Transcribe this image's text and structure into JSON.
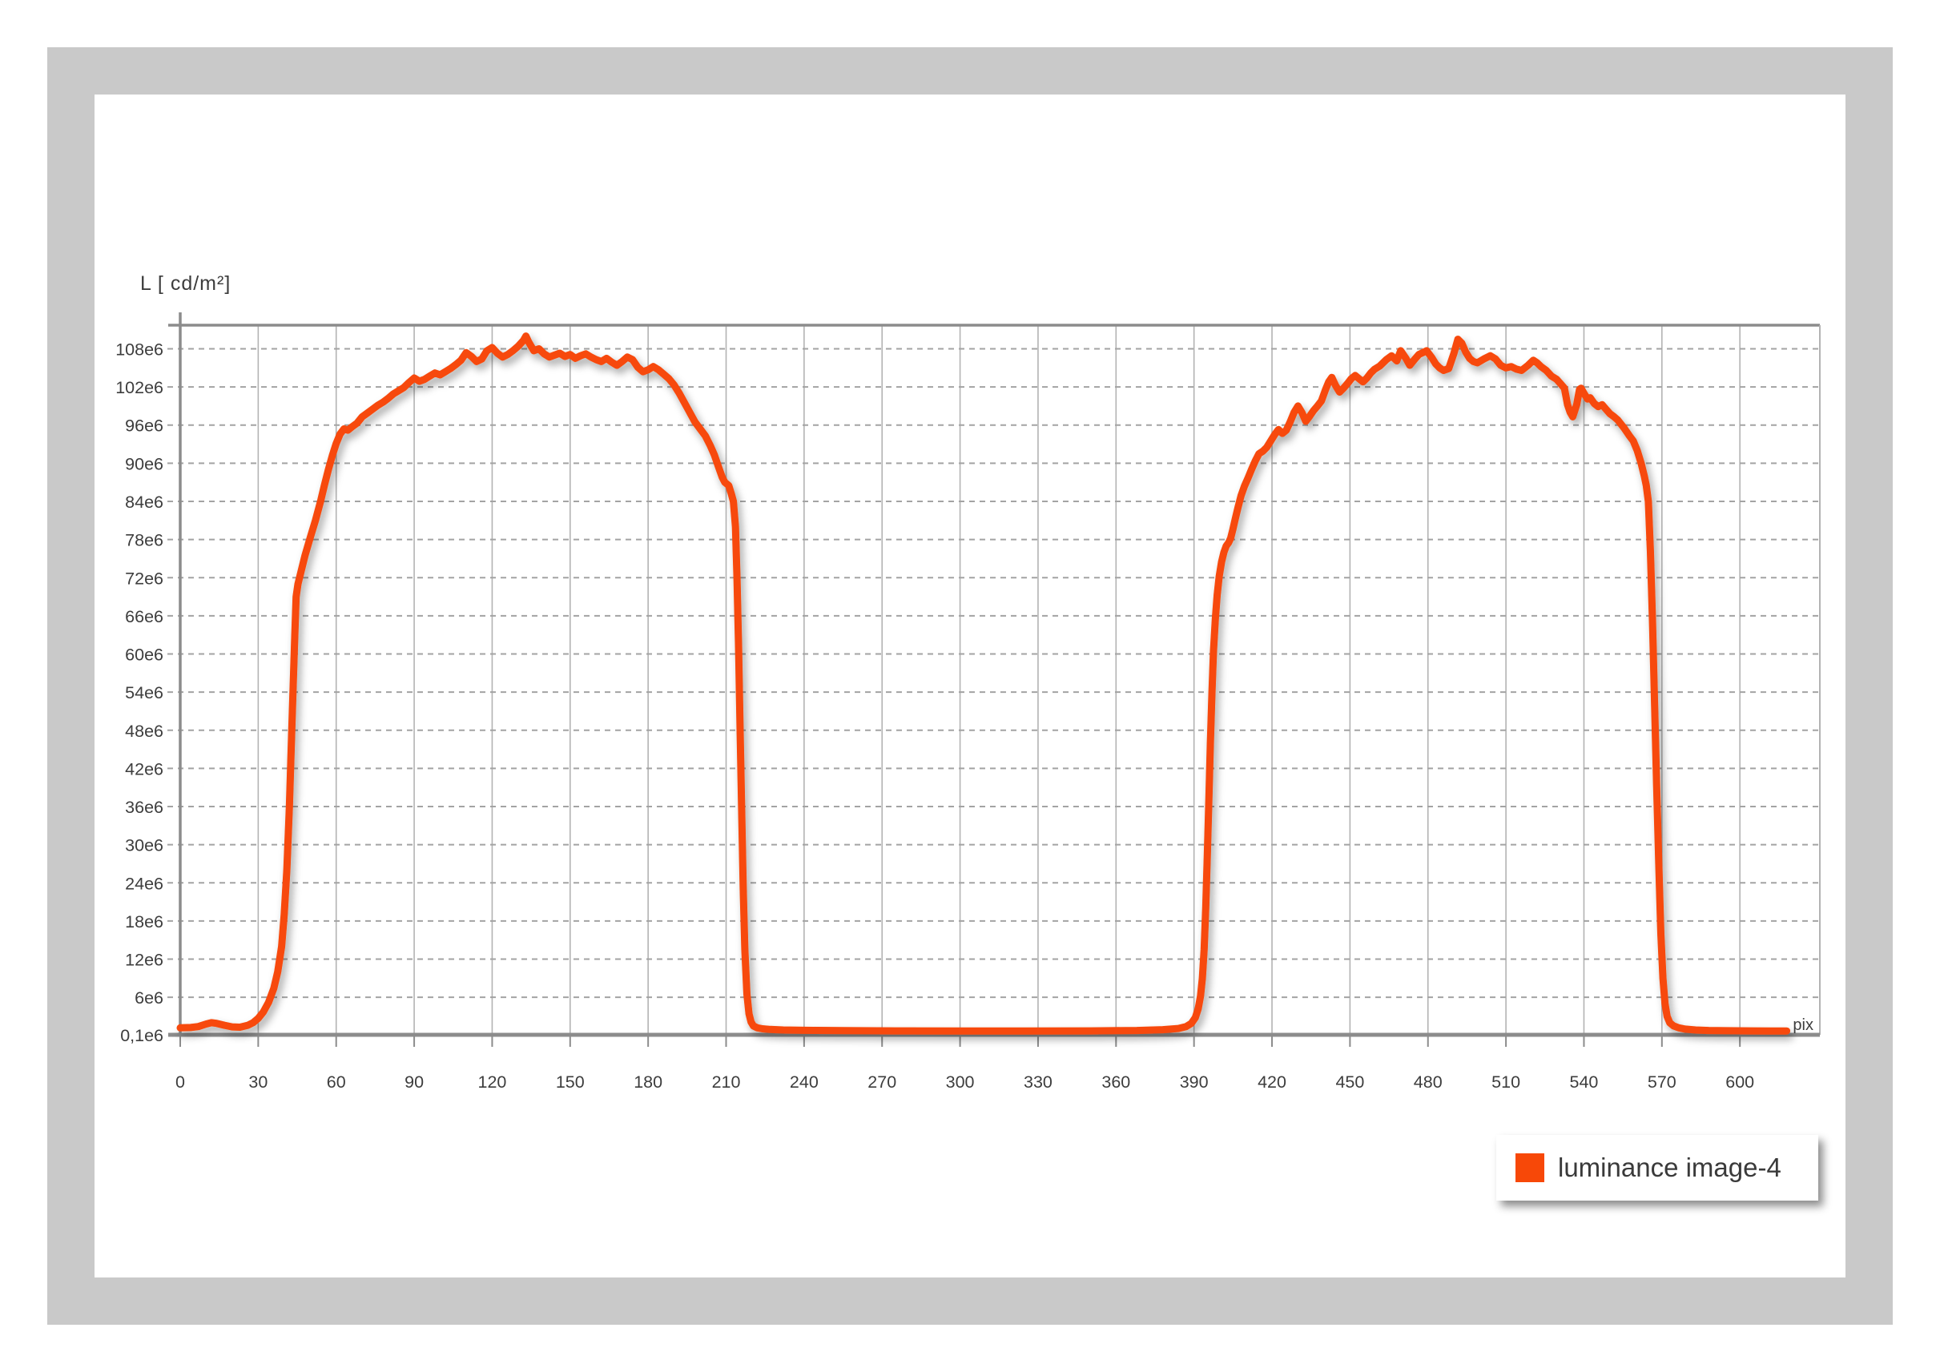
{
  "colors": {
    "curve": "#f74808",
    "frame_gray": "#c9c9c9",
    "panel_bg": "#ffffff",
    "axis": "#8c8c8c",
    "grid_vertical": "#b3b3b3",
    "grid_dashed": "#a3a3a3",
    "text": "#3d3d3d"
  },
  "axis_title": "L [ cd/m²]",
  "x_unit_label": "pix",
  "legend": {
    "label": "luminance image-4"
  },
  "chart_data": {
    "type": "line",
    "title": "",
    "xlabel": "pix",
    "ylabel": "L [ cd/m²]",
    "x_ticks": [
      0,
      30,
      60,
      90,
      120,
      150,
      180,
      210,
      240,
      270,
      300,
      330,
      360,
      390,
      420,
      450,
      480,
      510,
      540,
      570,
      600
    ],
    "y_ticks": [
      {
        "label": "108e6",
        "value": 108
      },
      {
        "label": "102e6",
        "value": 102
      },
      {
        "label": "96e6",
        "value": 96
      },
      {
        "label": "90e6",
        "value": 90
      },
      {
        "label": "84e6",
        "value": 84
      },
      {
        "label": "78e6",
        "value": 78
      },
      {
        "label": "72e6",
        "value": 72
      },
      {
        "label": "66e6",
        "value": 66
      },
      {
        "label": "60e6",
        "value": 60
      },
      {
        "label": "54e6",
        "value": 54
      },
      {
        "label": "48e6",
        "value": 48
      },
      {
        "label": "42e6",
        "value": 42
      },
      {
        "label": "36e6",
        "value": 36
      },
      {
        "label": "30e6",
        "value": 30
      },
      {
        "label": "24e6",
        "value": 24
      },
      {
        "label": "18e6",
        "value": 18
      },
      {
        "label": "12e6",
        "value": 12
      },
      {
        "label": "6e6",
        "value": 6
      },
      {
        "label": "0,1e6",
        "value": 0.1
      }
    ],
    "xlim": [
      0,
      631
    ],
    "ylim": [
      0.1,
      111.6
    ],
    "y_unit": "e6 cd/m2",
    "grid": true,
    "legend_position": "bottom-right",
    "series": [
      {
        "name": "luminance image-4",
        "points": [
          [
            0,
            1.2
          ],
          [
            4,
            1.25
          ],
          [
            7,
            1.4
          ],
          [
            10,
            1.8
          ],
          [
            12,
            2.0
          ],
          [
            14,
            1.9
          ],
          [
            17,
            1.6
          ],
          [
            20,
            1.35
          ],
          [
            23,
            1.3
          ],
          [
            26,
            1.6
          ],
          [
            28,
            2.0
          ],
          [
            30,
            2.7
          ],
          [
            32,
            3.7
          ],
          [
            34,
            5.2
          ],
          [
            36,
            7.4
          ],
          [
            37.5,
            10
          ],
          [
            39,
            14
          ],
          [
            40,
            19
          ],
          [
            41,
            26
          ],
          [
            42,
            36
          ],
          [
            43,
            49
          ],
          [
            44,
            62
          ],
          [
            44.6,
            69
          ],
          [
            45.3,
            71
          ],
          [
            46.5,
            73
          ],
          [
            48,
            75.5
          ],
          [
            50,
            78.3
          ],
          [
            52,
            81
          ],
          [
            54,
            84
          ],
          [
            55.5,
            86.6
          ],
          [
            57,
            89
          ],
          [
            58.5,
            91.2
          ],
          [
            60,
            93.1
          ],
          [
            61.5,
            94.6
          ],
          [
            63,
            95.4
          ],
          [
            64.5,
            95.2
          ],
          [
            66,
            95.7
          ],
          [
            68,
            96.3
          ],
          [
            70,
            97.3
          ],
          [
            72,
            97.9
          ],
          [
            74,
            98.5
          ],
          [
            76,
            99.1
          ],
          [
            78,
            99.6
          ],
          [
            80,
            100.2
          ],
          [
            82,
            100.9
          ],
          [
            84,
            101.4
          ],
          [
            86,
            101.9
          ],
          [
            88,
            102.7
          ],
          [
            90,
            103.4
          ],
          [
            92,
            102.9
          ],
          [
            94,
            103.2
          ],
          [
            96,
            103.7
          ],
          [
            98,
            104.2
          ],
          [
            100,
            103.9
          ],
          [
            102,
            104.4
          ],
          [
            104,
            104.9
          ],
          [
            106,
            105.5
          ],
          [
            108,
            106.2
          ],
          [
            110,
            107.4
          ],
          [
            112,
            106.8
          ],
          [
            114,
            106.0
          ],
          [
            116,
            106.4
          ],
          [
            118,
            107.7
          ],
          [
            120,
            108.2
          ],
          [
            122,
            107.3
          ],
          [
            124,
            106.7
          ],
          [
            126,
            107.1
          ],
          [
            128,
            107.7
          ],
          [
            130,
            108.4
          ],
          [
            132,
            109.3
          ],
          [
            133,
            110.0
          ],
          [
            134,
            109.1
          ],
          [
            136,
            107.7
          ],
          [
            138,
            108.0
          ],
          [
            140,
            107.2
          ],
          [
            142,
            106.7
          ],
          [
            144,
            107.0
          ],
          [
            146,
            107.3
          ],
          [
            148,
            106.8
          ],
          [
            150,
            107.1
          ],
          [
            152,
            106.5
          ],
          [
            154,
            106.9
          ],
          [
            156,
            107.2
          ],
          [
            158,
            106.7
          ],
          [
            160,
            106.3
          ],
          [
            162,
            106.0
          ],
          [
            164,
            106.5
          ],
          [
            166,
            105.9
          ],
          [
            168,
            105.4
          ],
          [
            170,
            106.0
          ],
          [
            172,
            106.7
          ],
          [
            174,
            106.3
          ],
          [
            176,
            105.1
          ],
          [
            178,
            104.4
          ],
          [
            180,
            104.7
          ],
          [
            182,
            105.2
          ],
          [
            184,
            104.7
          ],
          [
            186,
            104.0
          ],
          [
            188,
            103.3
          ],
          [
            190,
            102.3
          ],
          [
            192,
            101.0
          ],
          [
            194,
            99.5
          ],
          [
            196,
            98.0
          ],
          [
            198,
            96.5
          ],
          [
            200,
            95.4
          ],
          [
            202,
            94.3
          ],
          [
            204,
            92.7
          ],
          [
            205.5,
            91.3
          ],
          [
            207,
            89.5
          ],
          [
            208.5,
            87.8
          ],
          [
            209.5,
            87.0
          ],
          [
            211,
            86.5
          ],
          [
            212,
            85.2
          ],
          [
            212.8,
            84.0
          ],
          [
            213.6,
            80.0
          ],
          [
            214.2,
            72.0
          ],
          [
            214.8,
            61.0
          ],
          [
            215.4,
            48.0
          ],
          [
            216,
            35.0
          ],
          [
            216.6,
            23.0
          ],
          [
            217.2,
            13.5
          ],
          [
            218,
            6.5
          ],
          [
            218.8,
            3.4
          ],
          [
            219.6,
            2.1
          ],
          [
            220.5,
            1.5
          ],
          [
            222,
            1.2
          ],
          [
            224,
            1.05
          ],
          [
            227,
            0.95
          ],
          [
            232,
            0.85
          ],
          [
            240,
            0.8
          ],
          [
            255,
            0.75
          ],
          [
            275,
            0.72
          ],
          [
            300,
            0.7
          ],
          [
            325,
            0.7
          ],
          [
            350,
            0.72
          ],
          [
            368,
            0.78
          ],
          [
            378,
            0.9
          ],
          [
            384,
            1.1
          ],
          [
            387,
            1.4
          ],
          [
            389,
            1.9
          ],
          [
            390.5,
            2.8
          ],
          [
            391.6,
            4.2
          ],
          [
            392.5,
            6.2
          ],
          [
            393.2,
            9.0
          ],
          [
            393.9,
            13.5
          ],
          [
            394.5,
            20
          ],
          [
            395.1,
            28
          ],
          [
            395.7,
            37
          ],
          [
            396.3,
            46
          ],
          [
            396.9,
            54
          ],
          [
            397.5,
            60.5
          ],
          [
            398.2,
            65.5
          ],
          [
            398.9,
            69.3
          ],
          [
            399.7,
            72.2
          ],
          [
            400.6,
            74.5
          ],
          [
            401.5,
            76.0
          ],
          [
            402.4,
            77.0
          ],
          [
            403.3,
            77.5
          ],
          [
            404.1,
            78.2
          ],
          [
            404.9,
            79.5
          ],
          [
            405.8,
            81.1
          ],
          [
            406.9,
            83.0
          ],
          [
            408.1,
            84.9
          ],
          [
            409.4,
            86.4
          ],
          [
            410.8,
            87.7
          ],
          [
            412.1,
            89.0
          ],
          [
            413.6,
            90.4
          ],
          [
            415,
            91.5
          ],
          [
            416.5,
            91.9
          ],
          [
            418,
            92.5
          ],
          [
            419.5,
            93.5
          ],
          [
            421,
            94.5
          ],
          [
            422.5,
            95.3
          ],
          [
            424,
            94.7
          ],
          [
            425.5,
            95.2
          ],
          [
            427,
            96.5
          ],
          [
            428.5,
            98.0
          ],
          [
            430,
            99.0
          ],
          [
            431.5,
            98.0
          ],
          [
            433,
            96.6
          ],
          [
            434.5,
            97.4
          ],
          [
            436,
            98.3
          ],
          [
            437.5,
            99.0
          ],
          [
            439,
            99.8
          ],
          [
            440.5,
            101.5
          ],
          [
            441.8,
            102.8
          ],
          [
            443,
            103.5
          ],
          [
            444.5,
            102.2
          ],
          [
            446,
            101.2
          ],
          [
            447.5,
            101.8
          ],
          [
            449,
            102.5
          ],
          [
            450.5,
            103.3
          ],
          [
            452,
            103.8
          ],
          [
            453.5,
            103.3
          ],
          [
            455,
            102.8
          ],
          [
            456.5,
            103.4
          ],
          [
            458,
            104.2
          ],
          [
            459.5,
            104.8
          ],
          [
            461.5,
            105.3
          ],
          [
            464,
            106.3
          ],
          [
            466,
            106.9
          ],
          [
            468,
            106.1
          ],
          [
            469.5,
            107.7
          ],
          [
            471.5,
            106.5
          ],
          [
            473,
            105.4
          ],
          [
            475,
            106.4
          ],
          [
            476.5,
            107.1
          ],
          [
            478,
            107.4
          ],
          [
            479.5,
            107.7
          ],
          [
            481.5,
            106.6
          ],
          [
            483,
            105.6
          ],
          [
            484.5,
            105.0
          ],
          [
            486,
            104.6
          ],
          [
            488,
            104.9
          ],
          [
            490,
            107.3
          ],
          [
            491.5,
            109.5
          ],
          [
            493,
            108.9
          ],
          [
            494.5,
            107.5
          ],
          [
            496,
            106.5
          ],
          [
            497.5,
            106.0
          ],
          [
            499,
            105.8
          ],
          [
            501.5,
            106.4
          ],
          [
            504,
            106.9
          ],
          [
            506,
            106.4
          ],
          [
            508,
            105.4
          ],
          [
            510,
            105.0
          ],
          [
            512,
            105.2
          ],
          [
            514,
            104.8
          ],
          [
            516,
            104.6
          ],
          [
            518.5,
            105.4
          ],
          [
            520.5,
            106.2
          ],
          [
            522,
            105.8
          ],
          [
            523.5,
            105.2
          ],
          [
            525.5,
            104.6
          ],
          [
            527.5,
            103.7
          ],
          [
            529.5,
            103.2
          ],
          [
            531,
            102.5
          ],
          [
            532.5,
            101.8
          ],
          [
            533.7,
            99.2
          ],
          [
            534.7,
            98.0
          ],
          [
            535.7,
            97.3
          ],
          [
            537.2,
            99.2
          ],
          [
            538.3,
            101.6
          ],
          [
            538.9,
            101.8
          ],
          [
            540.3,
            100.8
          ],
          [
            541.4,
            100.1
          ],
          [
            542.4,
            100.3
          ],
          [
            544,
            99.4
          ],
          [
            545.5,
            98.9
          ],
          [
            547,
            99.2
          ],
          [
            548.5,
            98.5
          ],
          [
            550,
            97.8
          ],
          [
            551.6,
            97.3
          ],
          [
            553,
            96.8
          ],
          [
            555.5,
            95.5
          ],
          [
            557.5,
            94.3
          ],
          [
            559,
            93.5
          ],
          [
            560.5,
            92.0
          ],
          [
            562,
            90.0
          ],
          [
            563.2,
            88.0
          ],
          [
            564,
            86.5
          ],
          [
            564.8,
            84.0
          ],
          [
            565.6,
            76.0
          ],
          [
            566.4,
            65.0
          ],
          [
            567.2,
            52.0
          ],
          [
            568,
            39.0
          ],
          [
            568.8,
            27.0
          ],
          [
            569.6,
            16.0
          ],
          [
            570.4,
            9.0
          ],
          [
            571.2,
            5.0
          ],
          [
            572,
            3.0
          ],
          [
            573,
            2.0
          ],
          [
            574.5,
            1.5
          ],
          [
            576.5,
            1.2
          ],
          [
            579,
            1.0
          ],
          [
            583,
            0.85
          ],
          [
            588,
            0.78
          ],
          [
            595,
            0.74
          ],
          [
            604,
            0.72
          ],
          [
            612,
            0.71
          ],
          [
            618,
            0.7
          ]
        ]
      }
    ]
  }
}
